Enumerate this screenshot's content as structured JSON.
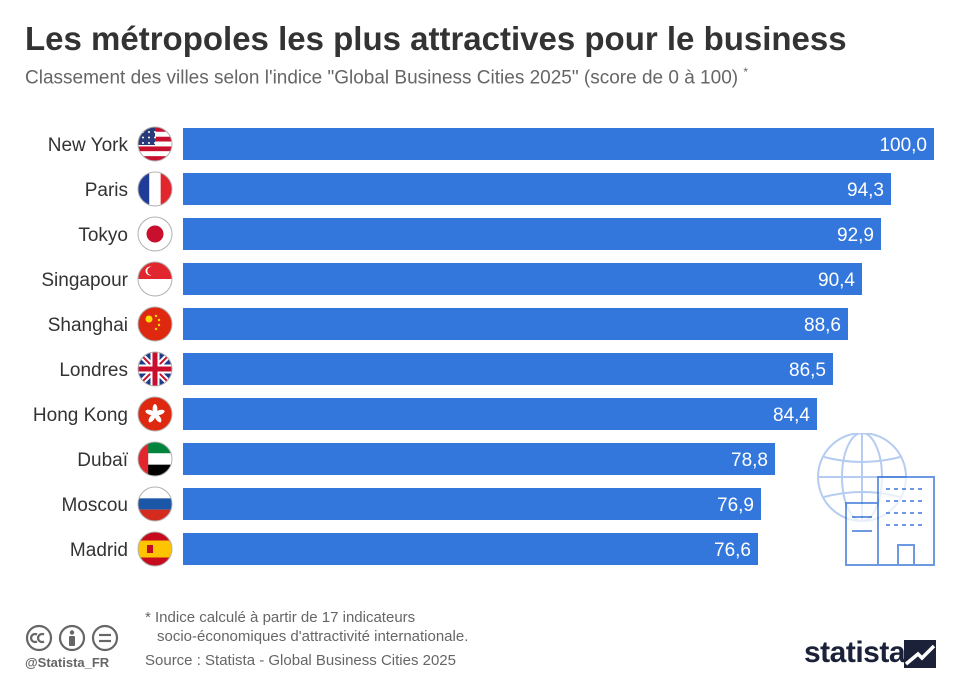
{
  "header": {
    "title": "Les métropoles les plus attractives pour le business",
    "subtitle": "Classement des villes selon l'indice \"Global Business Cities 2025\" (score de 0 à 100)",
    "subtitle_marker": "*"
  },
  "chart_data": {
    "type": "bar",
    "orientation": "horizontal",
    "categories": [
      "New York",
      "Paris",
      "Tokyo",
      "Singapour",
      "Shanghai",
      "Londres",
      "Hong Kong",
      "Dubaï",
      "Moscou",
      "Madrid"
    ],
    "values": [
      100.0,
      94.3,
      92.9,
      90.4,
      88.6,
      86.5,
      84.4,
      78.8,
      76.9,
      76.6
    ],
    "value_labels": [
      "100,0",
      "94,3",
      "92,9",
      "90,4",
      "88,6",
      "86,5",
      "84,4",
      "78,8",
      "76,9",
      "76,6"
    ],
    "flags": [
      "flag-usa-icon",
      "flag-france-icon",
      "flag-japan-icon",
      "flag-singapore-icon",
      "flag-china-icon",
      "flag-uk-icon",
      "flag-hong-kong-icon",
      "flag-uae-icon",
      "flag-russia-icon",
      "flag-spain-icon"
    ],
    "xlim": [
      0,
      100
    ],
    "bar_color": "#3377dd",
    "grid": false
  },
  "footer": {
    "note_line1": "* Indice calculé à partir de 17 indicateurs",
    "note_line2": "socio-économiques d'attractivité internationale.",
    "source": "Source : Statista - Global Business Cities 2025",
    "handle": "@Statista_FR",
    "brand": "statista"
  },
  "colors": {
    "bar": "#3377dd",
    "title": "#333333",
    "subtitle": "#666666",
    "brand": "#1a2138",
    "decoration": "#2f6fd6"
  }
}
